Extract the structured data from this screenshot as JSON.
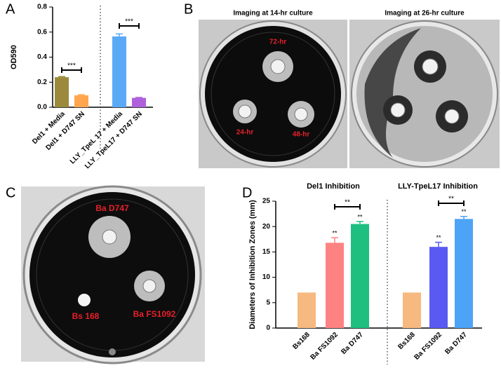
{
  "panel_labels": [
    "A",
    "B",
    "C",
    "D"
  ],
  "images": {
    "b": {
      "titles": [
        "Imaging at 14-hr culture",
        "Imaging at 26-hr culture"
      ],
      "labels": [
        "72-hr",
        "24-hr",
        "48-hr"
      ]
    },
    "c": {
      "labels": [
        "Ba D747",
        "Bs 168",
        "Ba FS1092"
      ]
    }
  },
  "chart_data": [
    {
      "type": "bar",
      "y_label": "OD590",
      "categories": [
        "Del1 + Media",
        "Del1 + D747 SN",
        "LLY_TpeL 17 + Media",
        "LLY_TpeL17 + D747 SN"
      ],
      "values": [
        0.24,
        0.095,
        0.565,
        0.075
      ],
      "errors": [
        0.005,
        0.005,
        0.02,
        0.003
      ],
      "colors": [
        "#9b8a3c",
        "#ffa64f",
        "#5aa9f6",
        "#b060dc"
      ],
      "ylim": [
        0,
        0.8
      ],
      "yticks": [
        {
          "value": 0,
          "label": "0.0"
        },
        0.2,
        0.4,
        0.6,
        0.8
      ],
      "brackets": [
        "***",
        "***"
      ]
    },
    {
      "type": "bar",
      "y_label": "Diameters of Inhibition Zones (mm)",
      "subtitles": [
        "Del1 Inhibition",
        "LLY-TpeL17 Inhibition"
      ],
      "categories": [
        "Bs168",
        "Ba FS1092",
        "Ba D747",
        "Bs168",
        "Ba FS1092",
        "Ba D747"
      ],
      "values": [
        7,
        16.8,
        20.5,
        7,
        16,
        21.5
      ],
      "errors": [
        0,
        1,
        0.5,
        0,
        0.9,
        0.5
      ],
      "colors": [
        "#f6b97f",
        "#ff8282",
        "#1fbf80",
        "#f6b97f",
        "#5a5af2",
        "#4da3f6"
      ],
      "ylim": [
        0,
        25
      ],
      "yticks": [
        0,
        5,
        10,
        15,
        20,
        25
      ],
      "significance": [
        null,
        "**",
        "**",
        null,
        "**",
        "**"
      ],
      "brackets": [
        "**",
        "**"
      ]
    }
  ]
}
